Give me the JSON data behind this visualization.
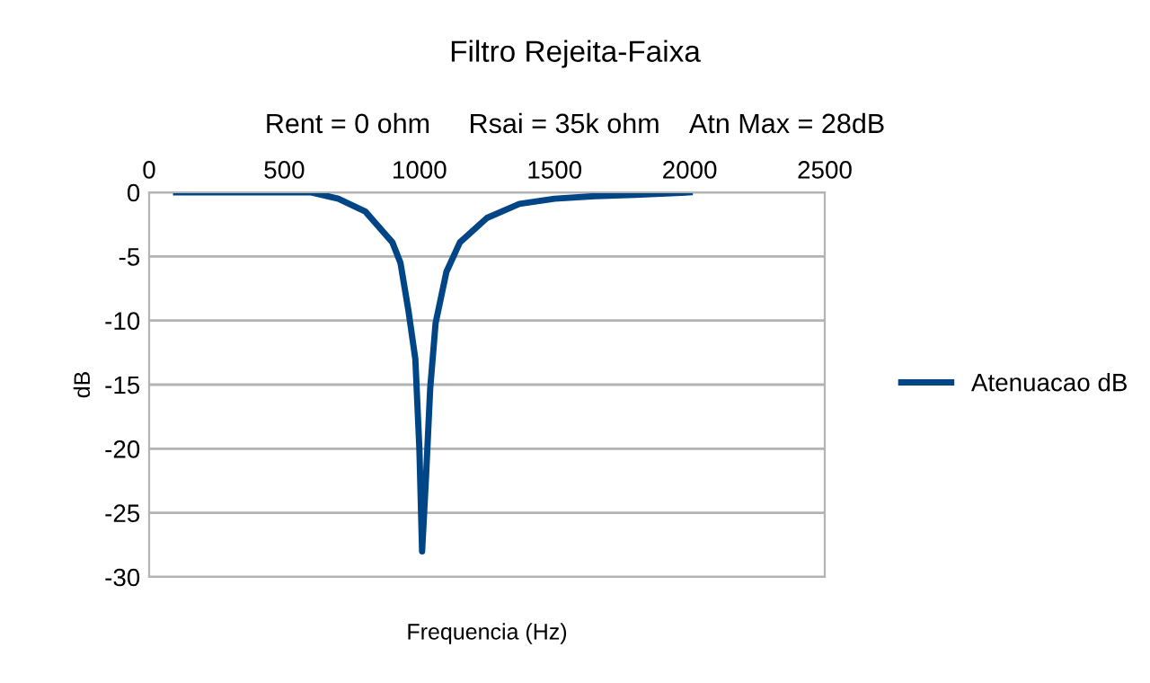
{
  "chart_data": {
    "type": "line",
    "title": "Filtro Rejeita-Faixa",
    "subtitle": "Rent = 0 ohm     Rsai = 35k ohm    Atn Max = 28dB",
    "xlabel": "Frequencia (Hz)",
    "ylabel": "dB",
    "series": [
      {
        "name": "Atenuacao dB",
        "color": "#004586",
        "x": [
          100,
          600,
          700,
          800,
          900,
          930,
          960,
          985,
          1000,
          1010,
          1025,
          1040,
          1060,
          1100,
          1150,
          1250,
          1370,
          1500,
          1650,
          1800,
          2000
        ],
        "values": [
          0,
          0,
          -0.5,
          -1.5,
          -3.9,
          -5.5,
          -9.3,
          -13,
          -20,
          -28,
          -22,
          -15.3,
          -10.2,
          -6.2,
          -3.9,
          -2,
          -0.9,
          -0.5,
          -0.3,
          -0.2,
          0
        ]
      }
    ],
    "xlim": [
      0,
      2500
    ],
    "xticks": [
      0,
      500,
      1000,
      1500,
      2000,
      2500
    ],
    "ylim": [
      -30,
      0
    ],
    "yticks": [
      -30,
      -25,
      -20,
      -15,
      -10,
      -5,
      0
    ],
    "grid": "y",
    "legend": "right",
    "marker": "none",
    "line_style": "solid"
  }
}
